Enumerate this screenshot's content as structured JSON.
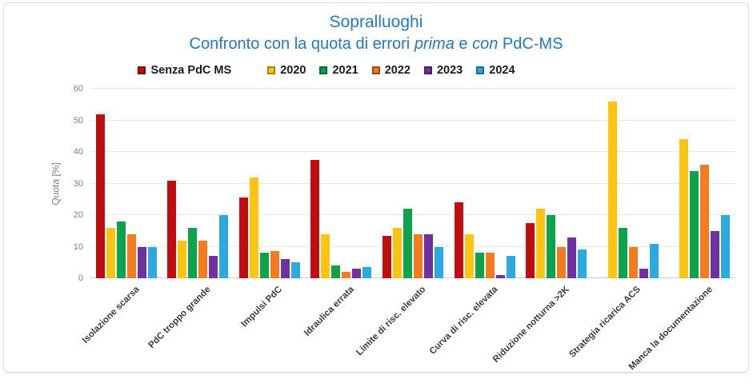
{
  "chart": {
    "title": "Sopralluoghi",
    "subtitle_segments": [
      {
        "text": "Confronto con la quota di errori ",
        "italic": false
      },
      {
        "text": "prima",
        "italic": true
      },
      {
        "text": " e ",
        "italic": false
      },
      {
        "text": "con",
        "italic": true
      },
      {
        "text": " PdC-MS",
        "italic": false
      }
    ],
    "title_color": "#2279c4"
  },
  "chart_data": {
    "type": "bar",
    "title": "Sopralluoghi",
    "subtitle": "Confronto con la quota di errori prima e con PdC-MS",
    "xlabel": "",
    "ylabel": "Quota [%]",
    "ylim": [
      0,
      60
    ],
    "ytick_step": 10,
    "grid": true,
    "legend_position": "top",
    "categories": [
      "Isolazione scarsa",
      "PdC troppo grande",
      "Impulsi PdC",
      "Idraulica errata",
      "Limite di risc. elevato",
      "Curva di risc. elevata",
      "Riduzione notturna >2K",
      "Strategia ricarica ACS",
      "Manca la documentazione"
    ],
    "series": [
      {
        "name": "Senza PdC MS",
        "color": "#c00d12",
        "border": "#7c0a0e",
        "values": [
          52,
          31,
          25.5,
          37.5,
          13.5,
          24,
          17.5,
          null,
          null
        ]
      },
      {
        "name": "2020",
        "color": "#ffc412",
        "border": "#a87e00",
        "values": [
          16,
          12,
          32,
          14,
          16,
          14,
          22,
          56,
          44
        ]
      },
      {
        "name": "2021",
        "color": "#0da24c",
        "border": "#086a31",
        "values": [
          18,
          16,
          8,
          4,
          22,
          8,
          20,
          16,
          34
        ]
      },
      {
        "name": "2022",
        "color": "#f47b20",
        "border": "#9e4b0e",
        "values": [
          14,
          12,
          8.5,
          2,
          14,
          8,
          10,
          10,
          36
        ]
      },
      {
        "name": "2023",
        "color": "#7030a0",
        "border": "#471d68",
        "values": [
          10,
          7,
          6,
          3,
          14,
          1,
          13,
          3,
          15
        ]
      },
      {
        "name": "2024",
        "color": "#29abe2",
        "border": "#1a6f94",
        "values": [
          10,
          20,
          5,
          3.5,
          10,
          7,
          9,
          11,
          20
        ]
      }
    ]
  }
}
